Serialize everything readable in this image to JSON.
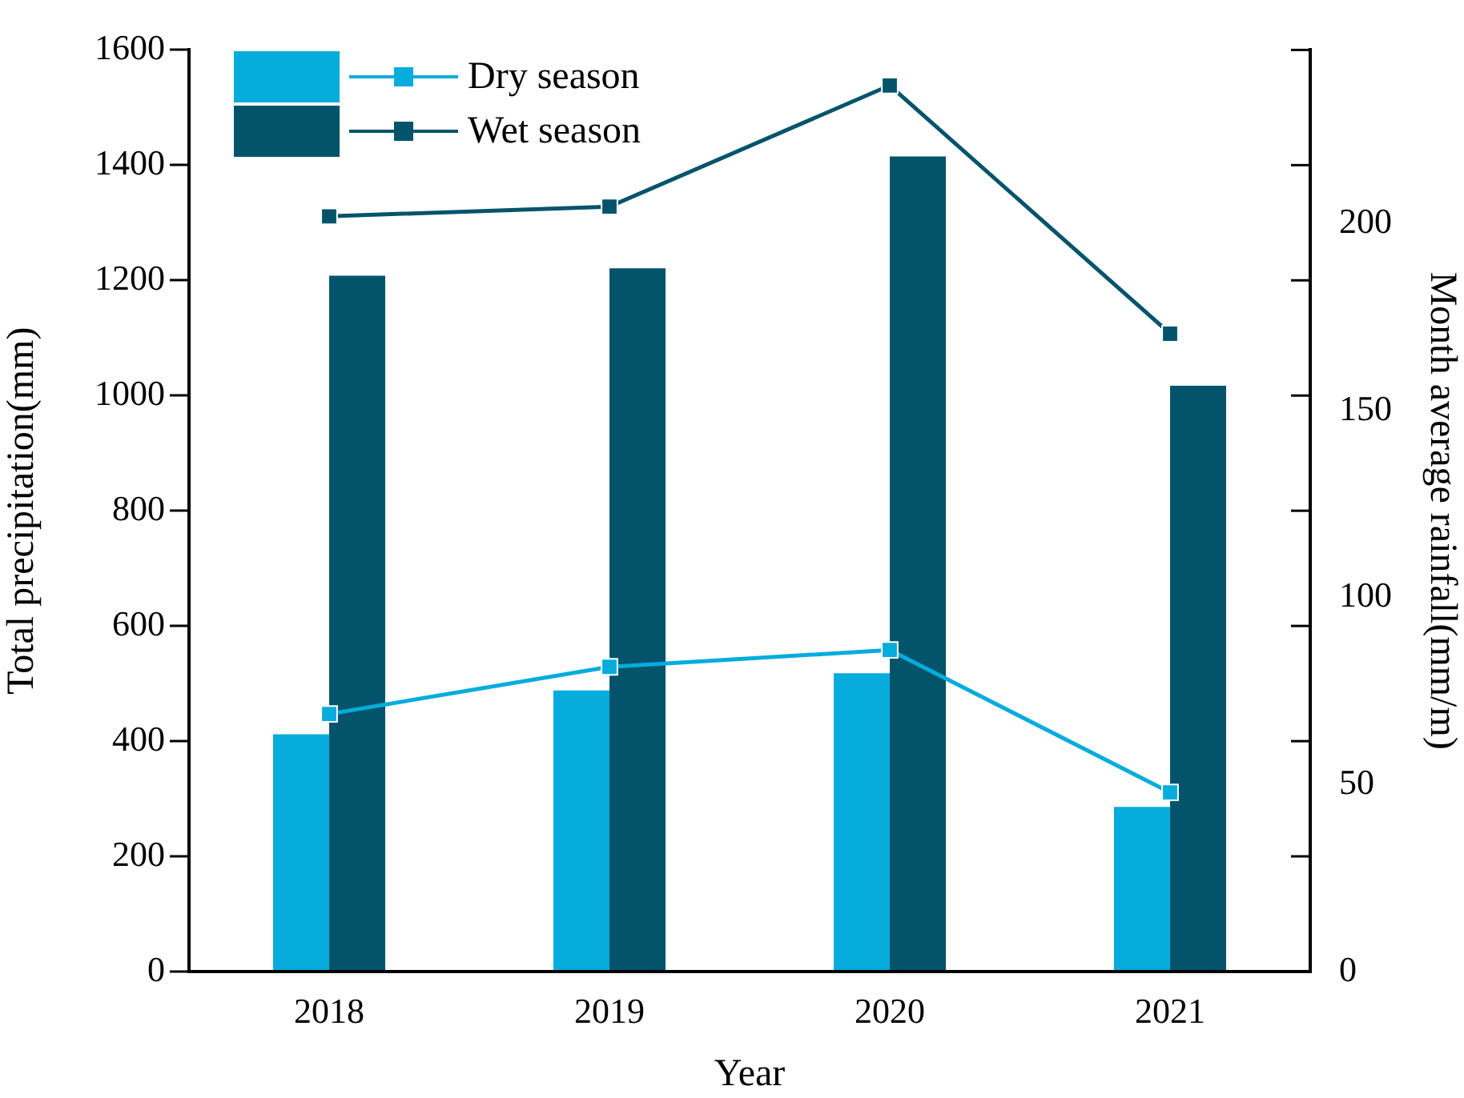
{
  "chart_data": {
    "type": "bar",
    "categories": [
      "2018",
      "2019",
      "2020",
      "2021"
    ],
    "xlabel": "Year",
    "ylabel": "Total precipitation(mm)",
    "y2label": "Month average rainfall(mm/m)",
    "ylim": [
      0,
      1600
    ],
    "yticks": [
      0,
      200,
      400,
      600,
      800,
      1000,
      1200,
      1400,
      1600
    ],
    "y2lim": [
      0,
      246.5
    ],
    "y2ticks": [
      0,
      50,
      100,
      150,
      200
    ],
    "grid": false,
    "legend": "top left",
    "marker": "square",
    "series": [
      {
        "color": "#05acdc",
        "values": [
          412,
          488,
          518,
          286
        ]
      },
      {
        "color": "#03546b",
        "values": [
          1208,
          1221,
          1415,
          1017
        ]
      },
      {
        "name": "Dry season",
        "type": "line",
        "axis": "y2",
        "color": "#05acdc",
        "values": [
          68.9,
          81.5,
          86,
          47.9
        ]
      },
      {
        "name": "Wet season",
        "type": "line",
        "axis": "y2",
        "color": "#03546b",
        "values": [
          202,
          204.6,
          237,
          170.6
        ]
      }
    ]
  }
}
